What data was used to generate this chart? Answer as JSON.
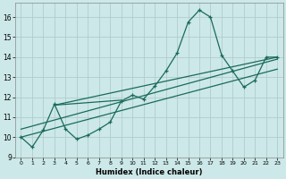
{
  "xlabel": "Humidex (Indice chaleur)",
  "bg_color": "#cce8e8",
  "grid_color": "#b0cccc",
  "line_color": "#1a6b5a",
  "xlim": [
    -0.5,
    23.5
  ],
  "ylim": [
    9.0,
    16.7
  ],
  "yticks": [
    9,
    10,
    11,
    12,
    13,
    14,
    15,
    16
  ],
  "xticks": [
    0,
    1,
    2,
    3,
    4,
    5,
    6,
    7,
    8,
    9,
    10,
    11,
    12,
    13,
    14,
    15,
    16,
    17,
    18,
    19,
    20,
    21,
    22,
    23
  ],
  "curve1_x": [
    0,
    1,
    2,
    3,
    4,
    5,
    6,
    7,
    8,
    9,
    10,
    11,
    12,
    13,
    14,
    15,
    16,
    17,
    18,
    19,
    20,
    21,
    22,
    23
  ],
  "curve1_y": [
    10.0,
    9.5,
    10.35,
    11.65,
    10.4,
    9.9,
    10.1,
    10.4,
    10.75,
    11.8,
    12.1,
    11.9,
    12.55,
    13.3,
    14.2,
    15.75,
    16.35,
    16.0,
    14.1,
    13.3,
    12.5,
    12.85,
    14.0,
    14.0
  ],
  "line1_x": [
    0,
    23
  ],
  "line1_y": [
    10.4,
    13.9
  ],
  "line2_x": [
    3,
    9
  ],
  "line2_y": [
    11.6,
    11.85
  ],
  "line3_x": [
    3,
    23
  ],
  "line3_y": [
    11.6,
    14.0
  ],
  "line4_x": [
    0,
    23
  ],
  "line4_y": [
    10.0,
    13.4
  ]
}
